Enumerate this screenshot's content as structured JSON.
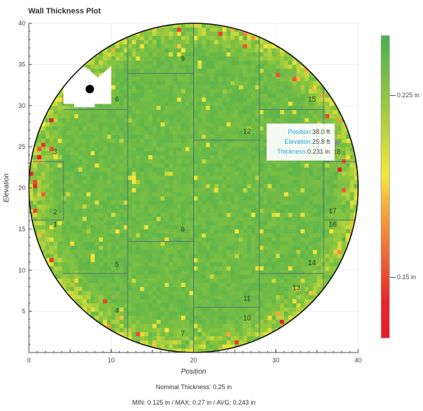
{
  "chart_data": {
    "type": "heatmap",
    "title": "Wall Thickness Plot",
    "xlabel": "Position",
    "ylabel": "Elevation",
    "xlim": [
      0,
      40
    ],
    "ylim": [
      0,
      40
    ],
    "xticks": [
      "0",
      "10",
      "20",
      "30",
      "40"
    ],
    "yticks": [
      "5",
      "10",
      "15",
      "20",
      "25",
      "30",
      "35",
      "40"
    ],
    "xtick_values": [
      0,
      10,
      20,
      30,
      40
    ],
    "ytick_values": [
      5,
      10,
      15,
      20,
      25,
      30,
      35,
      40
    ],
    "domain_shape": "circle",
    "circle_center": [
      20,
      20
    ],
    "circle_radius": 20,
    "units": "in",
    "colorbar": {
      "range": [
        0.125,
        0.25
      ],
      "ticks": [
        {
          "value": 0.225,
          "label": "0.225 in"
        },
        {
          "value": 0.15,
          "label": "0.15 in"
        }
      ],
      "colors": [
        "#e81a2a",
        "#ef6a35",
        "#f5e83a",
        "#8cc63f",
        "#4caf50"
      ]
    },
    "panel_vertical_lines": [
      {
        "x": 4.2,
        "y": [
          16.1,
          23.2
        ]
      },
      {
        "x": 12,
        "y": [
          0,
          40
        ]
      },
      {
        "x": 20,
        "y": [
          0,
          40
        ]
      },
      {
        "x": 28,
        "y": [
          0,
          40
        ]
      },
      {
        "x": 35.8,
        "y": [
          0,
          40
        ]
      }
    ],
    "panel_horizontal_lines": [
      {
        "y": 23.2,
        "x": [
          0,
          4.2
        ]
      },
      {
        "y": 16.1,
        "x": [
          0,
          4.2
        ]
      },
      {
        "y": 29.5,
        "x": [
          4.2,
          12
        ]
      },
      {
        "y": 9.6,
        "x": [
          4.2,
          12
        ]
      },
      {
        "y": 33.9,
        "x": [
          12,
          20
        ]
      },
      {
        "y": 13.5,
        "x": [
          12,
          20
        ]
      },
      {
        "y": 25.8,
        "x": [
          20,
          28
        ]
      },
      {
        "y": 5.5,
        "x": [
          20,
          28
        ]
      },
      {
        "y": 29.5,
        "x": [
          28,
          35.8
        ]
      },
      {
        "y": 9.6,
        "x": [
          28,
          35.8
        ]
      },
      {
        "y": 16.1,
        "x": [
          35.8,
          40
        ]
      },
      {
        "y": 23.2,
        "x": [
          35.8,
          40
        ]
      }
    ],
    "panels": [
      {
        "label": "1",
        "x": 3.2,
        "y": 15.3
      },
      {
        "label": "2",
        "x": 3.2,
        "y": 16.8
      },
      {
        "label": "3",
        "x": 3.2,
        "y": 24.1
      },
      {
        "label": "4",
        "x": 10.7,
        "y": 4.8
      },
      {
        "label": "5",
        "x": 10.7,
        "y": 10.4
      },
      {
        "label": "6",
        "x": 10.7,
        "y": 30.5
      },
      {
        "label": "7",
        "x": 18.7,
        "y": 2.0
      },
      {
        "label": "8",
        "x": 18.7,
        "y": 14.7
      },
      {
        "label": "9",
        "x": 18.7,
        "y": 35.4
      },
      {
        "label": "10",
        "x": 26.5,
        "y": 3.9
      },
      {
        "label": "11",
        "x": 26.5,
        "y": 6.3
      },
      {
        "label": "12",
        "x": 26.5,
        "y": 26.6
      },
      {
        "label": "13",
        "x": 32.5,
        "y": 7.6
      },
      {
        "label": "14",
        "x": 34.4,
        "y": 10.6
      },
      {
        "label": "15",
        "x": 34.4,
        "y": 30.5
      },
      {
        "label": "16",
        "x": 36.9,
        "y": 15.3
      },
      {
        "label": "17",
        "x": 36.9,
        "y": 16.9
      },
      {
        "label": "18",
        "x": 37.4,
        "y": 24.1
      }
    ],
    "no_data_region": [
      [
        4.2,
        30.2
      ],
      [
        5.5,
        30.2
      ],
      [
        5.5,
        29.8
      ],
      [
        8,
        29.8
      ],
      [
        8,
        30.2
      ],
      [
        10,
        30.2
      ],
      [
        10,
        34.8
      ],
      [
        8.4,
        33.4
      ],
      [
        7,
        34.6
      ],
      [
        5.8,
        34.8
      ],
      [
        4.2,
        32.4
      ]
    ],
    "marker": {
      "x": 7.4,
      "y": 32.0
    },
    "summary": {
      "nominal": 0.25,
      "min": 0.125,
      "max": 0.27,
      "avg": 0.243
    }
  },
  "tooltip": {
    "position_key": "Position:",
    "position_value": "38.0 ft",
    "elevation_key": "Elevation:",
    "elevation_value": "25.8 ft",
    "thickness_key": "Thickness:",
    "thickness_value": "0.231 in"
  },
  "footer": {
    "nominal": "Nominal Thickness:  0.25 in",
    "stats": "MIN: 0.125 in / MAX: 0.27 in / AVG: 0.243 in"
  }
}
